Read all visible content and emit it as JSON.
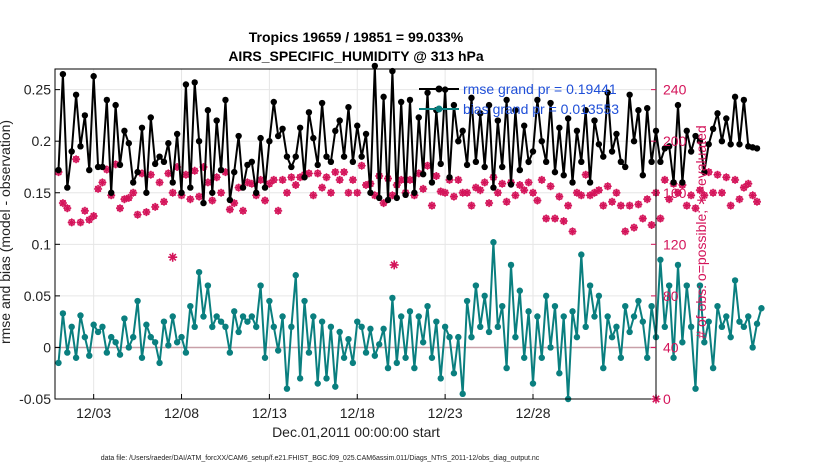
{
  "chart_data": {
    "type": "line",
    "title_line1": "Tropics 19659 / 19851 = 99.033%",
    "title_line2": "AIRS_SPECIFIC_HUMIDITY @ 313 hPa",
    "xlabel": "Dec.01,2011 00:00:00 start",
    "ylabel_left": "rmse and bias (model - observation)",
    "ylabel_right": "# of obs: o=possible; ∗=evaluated",
    "footnote": "data file: /Users/raeder/DAI/ATM_forcXX/CAM6_setup/f.e21.FHIST_BGC.f09_025.CAM6assim.011/Diags_NTrS_2011-12/obs_diag_output.nc",
    "xlim": [
      0.3,
      34.5
    ],
    "ylim_left": [
      -0.05,
      0.27
    ],
    "ylim_right": [
      0,
      256
    ],
    "x_tick_values": [
      2.5,
      7.5,
      12.5,
      17.5,
      22.5,
      27.5
    ],
    "x_tick_labels": [
      "12/03",
      "12/08",
      "12/13",
      "12/18",
      "12/23",
      "12/28"
    ],
    "y_left_ticks": [
      -0.05,
      0,
      0.05,
      0.1,
      0.15,
      0.2,
      0.25
    ],
    "y_left_tick_labels": [
      "-0.05",
      "0",
      "0.05",
      "0.1",
      "0.15",
      "0.2",
      "0.25"
    ],
    "y_right_ticks": [
      0,
      40,
      80,
      120,
      160,
      200,
      240
    ],
    "y_right_tick_labels": [
      "0",
      "40",
      "80",
      "120",
      "160",
      "200",
      "240"
    ],
    "legend": [
      {
        "label": "rmse grand pr = 0.19441",
        "color": "#000000"
      },
      {
        "label": "bias grand pr = 0.013553",
        "color": "#0a7f7f"
      }
    ],
    "colors": {
      "rmse": "#000000",
      "bias": "#0a7f7f",
      "obs": "#d4145a",
      "zero_line": "#c8a0a8",
      "grid": "#e6e6e6"
    },
    "series": [
      {
        "name": "rmse",
        "axis": "left",
        "x_start": 0.5,
        "x_step": 0.25,
        "values": [
          0.172,
          0.265,
          0.155,
          0.19,
          0.245,
          0.195,
          0.225,
          0.172,
          0.263,
          0.175,
          0.175,
          0.24,
          0.15,
          0.235,
          0.177,
          0.21,
          0.198,
          0.16,
          0.17,
          0.213,
          0.15,
          0.223,
          0.178,
          0.185,
          0.18,
          0.198,
          0.16,
          0.207,
          0.15,
          0.255,
          0.155,
          0.257,
          0.2,
          0.14,
          0.23,
          0.15,
          0.22,
          0.172,
          0.24,
          0.143,
          0.17,
          0.205,
          0.155,
          0.177,
          0.18,
          0.15,
          0.203,
          0.155,
          0.2,
          0.238,
          0.205,
          0.212,
          0.185,
          0.175,
          0.185,
          0.213,
          0.165,
          0.228,
          0.203,
          0.177,
          0.237,
          0.185,
          0.18,
          0.21,
          0.22,
          0.185,
          0.233,
          0.18,
          0.215,
          0.185,
          0.207,
          0.15,
          0.273,
          0.145,
          0.243,
          0.143,
          0.268,
          0.145,
          0.238,
          0.148,
          0.24,
          0.15,
          0.223,
          0.168,
          0.247,
          0.16,
          0.23,
          0.178,
          0.25,
          0.165,
          0.235,
          0.2,
          0.21,
          0.177,
          0.242,
          0.18,
          0.227,
          0.175,
          0.235,
          0.155,
          0.22,
          0.175,
          0.24,
          0.158,
          0.23,
          0.172,
          0.215,
          0.18,
          0.19,
          0.24,
          0.2,
          0.18,
          0.237,
          0.17,
          0.213,
          0.167,
          0.222,
          0.16,
          0.21,
          0.18,
          0.23,
          0.16,
          0.22,
          0.197,
          0.185,
          0.247,
          0.19,
          0.207,
          0.18,
          0.175,
          0.245,
          0.2,
          0.23,
          0.167,
          0.232,
          0.18,
          0.21,
          0.18,
          0.193,
          0.195,
          0.16,
          0.235,
          0.16,
          0.21,
          0.19,
          0.205,
          0.2,
          0.17,
          0.197,
          0.212,
          0.227,
          0.2,
          0.222,
          0.197,
          0.243,
          0.197,
          0.24,
          0.195,
          0.194,
          0.193
        ]
      },
      {
        "name": "bias",
        "axis": "left",
        "x_start": 0.5,
        "x_step": 0.25,
        "values": [
          -0.015,
          0.033,
          -0.005,
          0.02,
          -0.01,
          0.031,
          0.01,
          -0.008,
          0.022,
          0.015,
          0.02,
          -0.005,
          0.01,
          0.005,
          -0.007,
          0.028,
          0.0,
          0.01,
          0.045,
          -0.01,
          0.022,
          0.01,
          0.005,
          -0.015,
          0.025,
          0.002,
          0.03,
          0.005,
          0.01,
          -0.005,
          0.04,
          0.02,
          0.073,
          0.03,
          0.06,
          0.02,
          0.03,
          0.025,
          0.02,
          -0.005,
          0.035,
          0.015,
          0.03,
          0.025,
          0.03,
          0.02,
          0.06,
          -0.01,
          0.045,
          0.02,
          -0.003,
          0.03,
          -0.04,
          0.02,
          0.07,
          -0.03,
          0.045,
          -0.005,
          0.03,
          -0.035,
          0.025,
          -0.03,
          0.02,
          -0.038,
          0.015,
          -0.01,
          0.008,
          -0.015,
          0.025,
          0.02,
          -0.005,
          0.018,
          -0.008,
          0.003,
          0.018,
          -0.02,
          0.048,
          -0.015,
          0.03,
          -0.01,
          0.035,
          -0.02,
          0.03,
          0.005,
          0.04,
          -0.01,
          0.025,
          -0.03,
          0.02,
          0.01,
          -0.025,
          0.01,
          -0.045,
          0.045,
          0.01,
          0.06,
          0.02,
          0.05,
          0.015,
          0.102,
          0.02,
          0.04,
          -0.02,
          0.08,
          0.01,
          0.055,
          -0.01,
          0.035,
          -0.035,
          0.03,
          -0.01,
          0.05,
          0.0,
          0.04,
          -0.025,
          0.03,
          -0.05,
          0.035,
          0.01,
          0.09,
          0.02,
          0.06,
          0.03,
          0.05,
          -0.02,
          0.03,
          0.01,
          0.02,
          -0.01,
          0.04,
          0.015,
          0.03,
          0.045,
          0.025,
          -0.01,
          0.04,
          0.01,
          0.085,
          0.02,
          0.06,
          -0.01,
          0.08,
          0.005,
          0.06,
          0.02,
          -0.04,
          0.06,
          0.005,
          0.025,
          -0.02,
          0.04,
          0.02,
          0.03,
          0.01,
          0.065,
          0.025,
          0.02,
          0.03,
          0.0,
          0.023,
          0.038
        ]
      },
      {
        "name": "obs_possible",
        "axis": "right",
        "marker": "o",
        "x_start": 0.5,
        "x_step": 0.25,
        "values": [
          176,
          152,
          148,
          137,
          186,
          137,
          146,
          139,
          142,
          163,
          168,
          178,
          158,
          182,
          148,
          155,
          156,
          160,
          143,
          175,
          145,
          174,
          149,
          168,
          153,
          175,
          160,
          180,
          158,
          174,
          155,
          177,
          157,
          180,
          168,
          154,
          172,
          160,
          176,
          147,
          152,
          164,
          146,
          168,
          167,
          158,
          170,
          154,
          167,
          170,
          146,
          170,
          160,
          172,
          166,
          172,
          174,
          175,
          158,
          175,
          164,
          172,
          160,
          176,
          170,
          176,
          160,
          170,
          160,
          181,
          166,
          167,
          158,
          173,
          152,
          171,
          158,
          166,
          170,
          160,
          170,
          158,
          175,
          163,
          181,
          150,
          173,
          161,
          160,
          170,
          157,
          170,
          160,
          160,
          150,
          164,
          162,
          168,
          152,
          172,
          160,
          167,
          153,
          168,
          158,
          166,
          162,
          168,
          160,
          154,
          170,
          140,
          165,
          140,
          157,
          138,
          150,
          130,
          160,
          158,
          174,
          158,
          160,
          162,
          150,
          165,
          153,
          160,
          150,
          130,
          150,
          133,
          151,
          140,
          155,
          135,
          160,
          140,
          170,
          155,
          167,
          160,
          166,
          150,
          158,
          148,
          162,
          158,
          176,
          160,
          174,
          160,
          172,
          150,
          170,
          155,
          164,
          167,
          158,
          153
        ]
      },
      {
        "name": "obs_evaluated",
        "axis": "right",
        "marker": "*",
        "x_start": 0.5,
        "x_step": 0.25,
        "values": [
          176,
          152,
          148,
          137,
          186,
          137,
          146,
          139,
          142,
          163,
          168,
          178,
          158,
          182,
          148,
          155,
          156,
          160,
          143,
          175,
          145,
          174,
          149,
          168,
          153,
          175,
          160,
          180,
          158,
          174,
          155,
          177,
          157,
          180,
          168,
          154,
          172,
          160,
          176,
          147,
          152,
          164,
          146,
          168,
          167,
          158,
          170,
          154,
          167,
          170,
          146,
          170,
          160,
          172,
          166,
          172,
          174,
          175,
          158,
          175,
          164,
          172,
          160,
          176,
          170,
          176,
          160,
          170,
          160,
          181,
          166,
          167,
          158,
          173,
          152,
          171,
          158,
          166,
          170,
          160,
          170,
          158,
          175,
          163,
          181,
          150,
          173,
          161,
          160,
          170,
          157,
          170,
          160,
          160,
          150,
          164,
          162,
          168,
          152,
          172,
          160,
          167,
          153,
          168,
          158,
          166,
          162,
          168,
          160,
          154,
          170,
          140,
          165,
          140,
          157,
          138,
          150,
          130,
          160,
          158,
          174,
          158,
          160,
          162,
          150,
          165,
          153,
          160,
          150,
          130,
          150,
          133,
          151,
          140,
          155,
          135,
          160,
          140,
          170,
          155,
          167,
          160,
          166,
          150,
          158,
          148,
          162,
          158,
          176,
          160,
          174,
          160,
          172,
          150,
          170,
          155,
          164,
          167,
          158,
          153
        ]
      }
    ],
    "outliers_evaluated": [
      {
        "x": 7.0,
        "y": 110
      },
      {
        "x": 19.6,
        "y": 104
      },
      {
        "x": 34.5,
        "y": 0
      }
    ]
  }
}
